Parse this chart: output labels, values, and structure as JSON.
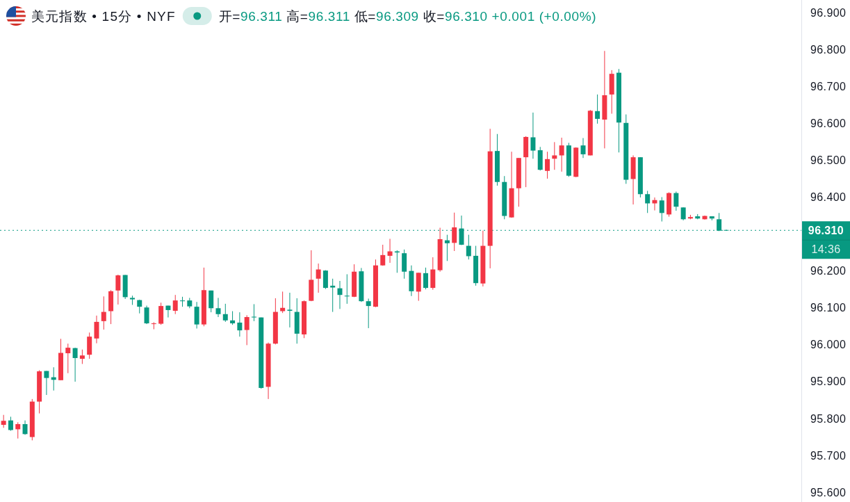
{
  "chart_data": {
    "type": "candlestick",
    "title": "美元指数 • 15分 • NYF",
    "subtitle": "开=96.311 高=96.311 低=96.309 收=96.310 +0.001 (+0.00%)",
    "categories": [
      null,
      null,
      null,
      null,
      null,
      null,
      null,
      null,
      null,
      null,
      null,
      null,
      null,
      null,
      null,
      null,
      null,
      null,
      null,
      null,
      null,
      null,
      null,
      null,
      null,
      null,
      null,
      null,
      null,
      null,
      null,
      null,
      null,
      null,
      null,
      null,
      null,
      null,
      null,
      null,
      null,
      null,
      null,
      null,
      null,
      null,
      null,
      null,
      null,
      null,
      null,
      null,
      null,
      null,
      null,
      null,
      null,
      null,
      null,
      null,
      null,
      null,
      null,
      null,
      null,
      null,
      null,
      null,
      null,
      null,
      null,
      null,
      null,
      null,
      null,
      null,
      null,
      null,
      null,
      null,
      null,
      null,
      null,
      null,
      null,
      null,
      null,
      null,
      null,
      null,
      null,
      null,
      null,
      null,
      null,
      null,
      null,
      null,
      null,
      null,
      null,
      null,
      null,
      null,
      null,
      null,
      null,
      null,
      null,
      null,
      null,
      null
    ],
    "ohlc": [
      [
        95.783,
        95.81,
        95.775,
        95.794
      ],
      [
        95.795,
        95.805,
        95.767,
        95.769
      ],
      [
        95.771,
        95.79,
        95.746,
        95.785
      ],
      [
        95.785,
        95.795,
        95.756,
        95.758
      ],
      [
        95.75,
        95.853,
        95.741,
        95.846
      ],
      [
        95.846,
        95.931,
        95.814,
        95.928
      ],
      [
        95.929,
        95.929,
        95.864,
        95.91
      ],
      [
        95.912,
        95.939,
        95.876,
        95.905
      ],
      [
        95.904,
        96.016,
        95.904,
        95.978
      ],
      [
        95.977,
        96.003,
        95.923,
        95.992
      ],
      [
        95.991,
        95.992,
        95.9,
        95.964
      ],
      [
        95.962,
        95.987,
        95.948,
        95.971
      ],
      [
        95.973,
        96.033,
        95.962,
        96.022
      ],
      [
        96.017,
        96.079,
        96.004,
        96.062
      ],
      [
        96.064,
        96.131,
        96.041,
        96.089
      ],
      [
        96.091,
        96.148,
        96.056,
        96.145
      ],
      [
        96.147,
        96.19,
        96.109,
        96.188
      ],
      [
        96.189,
        96.189,
        96.124,
        96.129
      ],
      [
        96.127,
        96.133,
        96.108,
        96.123
      ],
      [
        96.121,
        96.122,
        96.085,
        96.103
      ],
      [
        96.101,
        96.106,
        96.056,
        96.058
      ],
      [
        96.056,
        96.061,
        96.042,
        96.058
      ],
      [
        96.057,
        96.114,
        96.054,
        96.105
      ],
      [
        96.106,
        96.106,
        96.074,
        96.094
      ],
      [
        96.092,
        96.135,
        96.083,
        96.12
      ],
      [
        96.12,
        96.13,
        96.103,
        96.118
      ],
      [
        96.12,
        96.127,
        96.099,
        96.104
      ],
      [
        96.103,
        96.116,
        96.044,
        96.055
      ],
      [
        96.055,
        96.209,
        96.05,
        96.148
      ],
      [
        96.147,
        96.147,
        96.088,
        96.099
      ],
      [
        96.099,
        96.127,
        96.075,
        96.083
      ],
      [
        96.083,
        96.111,
        96.062,
        96.066
      ],
      [
        96.066,
        96.091,
        96.054,
        96.058
      ],
      [
        96.06,
        96.088,
        96.022,
        96.039
      ],
      [
        96.04,
        96.08,
        95.999,
        96.075
      ],
      [
        96.076,
        96.11,
        96.064,
        96.074
      ],
      [
        96.074,
        96.074,
        95.881,
        95.883
      ],
      [
        95.886,
        96.006,
        95.853,
        96.003
      ],
      [
        96.003,
        96.126,
        96.001,
        96.089
      ],
      [
        96.091,
        96.144,
        96.086,
        96.1
      ],
      [
        96.095,
        96.141,
        96.047,
        96.092
      ],
      [
        96.089,
        96.126,
        96.003,
        96.03
      ],
      [
        96.028,
        96.12,
        96.018,
        96.118
      ],
      [
        96.119,
        96.256,
        96.118,
        96.176
      ],
      [
        96.179,
        96.22,
        96.141,
        96.204
      ],
      [
        96.201,
        96.202,
        96.151,
        96.154
      ],
      [
        96.16,
        96.179,
        96.089,
        96.155
      ],
      [
        96.153,
        96.173,
        96.097,
        96.135
      ],
      [
        96.133,
        96.191,
        96.111,
        96.131
      ],
      [
        96.13,
        96.218,
        96.129,
        96.198
      ],
      [
        96.199,
        96.208,
        96.116,
        96.118
      ],
      [
        96.118,
        96.125,
        96.045,
        96.105
      ],
      [
        96.103,
        96.231,
        96.102,
        96.215
      ],
      [
        96.215,
        96.271,
        96.214,
        96.243
      ],
      [
        96.241,
        96.287,
        96.222,
        96.253
      ],
      [
        96.253,
        96.256,
        96.195,
        96.25
      ],
      [
        96.248,
        96.258,
        96.179,
        96.198
      ],
      [
        96.2,
        96.215,
        96.132,
        96.145
      ],
      [
        96.144,
        96.195,
        96.119,
        96.195
      ],
      [
        96.194,
        96.209,
        96.15,
        96.154
      ],
      [
        96.154,
        96.237,
        96.149,
        96.204
      ],
      [
        96.202,
        96.317,
        96.198,
        96.286
      ],
      [
        96.283,
        96.298,
        96.227,
        96.275
      ],
      [
        96.276,
        96.358,
        96.254,
        96.318
      ],
      [
        96.315,
        96.35,
        96.27,
        96.271
      ],
      [
        96.268,
        96.298,
        96.231,
        96.24
      ],
      [
        96.241,
        96.268,
        96.16,
        96.167
      ],
      [
        96.166,
        96.309,
        96.158,
        96.268
      ],
      [
        96.268,
        96.585,
        96.207,
        96.524
      ],
      [
        96.525,
        96.571,
        96.431,
        96.441
      ],
      [
        96.441,
        96.457,
        96.34,
        96.349
      ],
      [
        96.345,
        96.523,
        96.344,
        96.424
      ],
      [
        96.424,
        96.506,
        96.374,
        96.506
      ],
      [
        96.508,
        96.565,
        96.427,
        96.563
      ],
      [
        96.562,
        96.629,
        96.504,
        96.526
      ],
      [
        96.527,
        96.536,
        96.472,
        96.474
      ],
      [
        96.471,
        96.523,
        96.45,
        96.503
      ],
      [
        96.504,
        96.549,
        96.474,
        96.513
      ],
      [
        96.513,
        96.561,
        96.469,
        96.54
      ],
      [
        96.54,
        96.547,
        96.455,
        96.458
      ],
      [
        96.455,
        96.535,
        96.454,
        96.534
      ],
      [
        96.54,
        96.56,
        96.506,
        96.516
      ],
      [
        96.513,
        96.636,
        96.513,
        96.634
      ],
      [
        96.633,
        96.678,
        96.599,
        96.612
      ],
      [
        96.61,
        96.796,
        96.532,
        96.676
      ],
      [
        96.678,
        96.744,
        96.626,
        96.734
      ],
      [
        96.737,
        96.747,
        96.521,
        96.602
      ],
      [
        96.601,
        96.624,
        96.436,
        96.447
      ],
      [
        96.449,
        96.513,
        96.38,
        96.508
      ],
      [
        96.508,
        96.508,
        96.399,
        96.408
      ],
      [
        96.408,
        96.417,
        96.357,
        96.383
      ],
      [
        96.383,
        96.399,
        96.364,
        96.392
      ],
      [
        96.391,
        96.4,
        96.334,
        96.357
      ],
      [
        96.353,
        96.413,
        96.347,
        96.411
      ],
      [
        96.411,
        96.415,
        96.363,
        96.374
      ],
      [
        96.372,
        96.372,
        96.337,
        96.34
      ],
      [
        96.342,
        96.352,
        96.34,
        96.346
      ],
      [
        96.348,
        96.354,
        96.34,
        96.342
      ],
      [
        96.34,
        96.35,
        96.339,
        96.349
      ],
      [
        96.348,
        96.348,
        96.337,
        96.342
      ],
      [
        96.34,
        96.357,
        96.308,
        96.309
      ],
      [
        96.311,
        96.311,
        96.309,
        96.31
      ],
      null,
      null,
      null,
      null,
      null,
      null,
      null,
      null,
      null,
      null
    ],
    "colors": [
      "#f23645",
      "#089981",
      "#f23645",
      "#089981",
      "#f23645",
      "#f23645",
      "#089981",
      "#089981",
      "#f23645",
      "#f23645",
      "#089981",
      "#f23645",
      "#f23645",
      "#f23645",
      "#f23645",
      "#f23645",
      "#f23645",
      "#089981",
      "#089981",
      "#089981",
      "#089981",
      "#f23645",
      "#f23645",
      "#089981",
      "#f23645",
      "#089981",
      "#089981",
      "#089981",
      "#f23645",
      "#089981",
      "#089981",
      "#089981",
      "#089981",
      "#089981",
      "#f23645",
      "#089981",
      "#089981",
      "#f23645",
      "#f23645",
      "#f23645",
      "#089981",
      "#089981",
      "#f23645",
      "#f23645",
      "#f23645",
      "#089981",
      "#089981",
      "#089981",
      "#089981",
      "#f23645",
      "#089981",
      "#089981",
      "#f23645",
      "#f23645",
      "#f23645",
      "#089981",
      "#089981",
      "#089981",
      "#f23645",
      "#089981",
      "#f23645",
      "#f23645",
      "#089981",
      "#f23645",
      "#089981",
      "#089981",
      "#089981",
      "#f23645",
      "#f23645",
      "#089981",
      "#089981",
      "#f23645",
      "#f23645",
      "#f23645",
      "#089981",
      "#089981",
      "#f23645",
      "#f23645",
      "#f23645",
      "#089981",
      "#f23645",
      "#089981",
      "#f23645",
      "#089981",
      "#f23645",
      "#f23645",
      "#089981",
      "#089981",
      "#f23645",
      "#089981",
      "#089981",
      "#f23645",
      "#089981",
      "#f23645",
      "#089981",
      "#089981",
      "#f23645",
      "#089981",
      "#f23645",
      "#089981",
      "#089981",
      "#089981",
      null,
      null,
      null,
      null,
      null,
      null,
      null,
      null,
      null,
      null
    ],
    "ylim": [
      95.574,
      96.934
    ],
    "yticks": [
      {
        "value": 95.6,
        "label": "95.600"
      },
      {
        "value": 95.7,
        "label": "95.700"
      },
      {
        "value": 95.8,
        "label": "95.800"
      },
      {
        "value": 95.9,
        "label": "95.900"
      },
      {
        "value": 96.0,
        "label": "96.000"
      },
      {
        "value": 96.1,
        "label": "96.100"
      },
      {
        "value": 96.2,
        "label": "96.200"
      },
      {
        "value": 96.4,
        "label": "96.400"
      },
      {
        "value": 96.5,
        "label": "96.500"
      },
      {
        "value": 96.6,
        "label": "96.600"
      },
      {
        "value": 96.7,
        "label": "96.700"
      },
      {
        "value": 96.8,
        "label": "96.800"
      },
      {
        "value": 96.9,
        "label": "96.900"
      }
    ],
    "ref_lines": [
      {
        "axis": "y",
        "value": 96.31,
        "label": "96.310",
        "color": "#089981",
        "line_style": "dotted"
      }
    ],
    "annotations": [
      "14:36"
    ],
    "tick_labels": "y"
  }
}
